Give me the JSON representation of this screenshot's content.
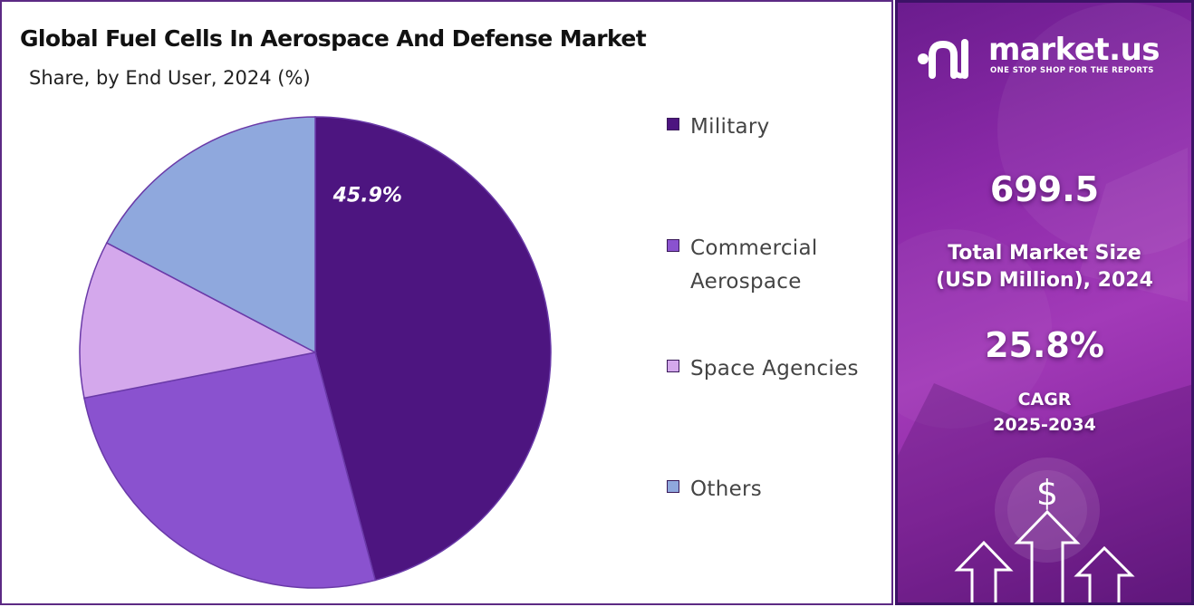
{
  "chart_data": {
    "type": "pie",
    "title": "Global Fuel Cells In Aerospace And Defense Market",
    "subtitle": "Share, by End User, 2024 (%)",
    "categories": [
      "Military",
      "Commercial Aerospace",
      "Space Agencies",
      "Others"
    ],
    "values": [
      45.9,
      26.0,
      10.8,
      17.3
    ],
    "colors": [
      "#4d1580",
      "#8a52cf",
      "#d4a8ec",
      "#8fa8dd"
    ],
    "data_labels": [
      "45.9%",
      "",
      "",
      ""
    ],
    "legend": [
      "Military",
      "Commercial Aerospace",
      "Space Agencies",
      "Others"
    ],
    "legend_position": "right"
  },
  "brand": {
    "name": "market.us",
    "tagline": "ONE STOP SHOP FOR THE REPORTS"
  },
  "stats": {
    "market_size_value": "699.5",
    "market_size_label_line1": "Total Market Size",
    "market_size_label_line2": "(USD Million), 2024",
    "cagr_value": "25.8%",
    "cagr_label_line1": "CAGR",
    "cagr_label_line2": "2025-2034"
  },
  "icons": {
    "currency": "$",
    "logo_icon": "market-us-logo-icon",
    "arrows": "growth-arrows-icon"
  },
  "colors": {
    "panel_border": "#5c2a84",
    "info_gradient_start": "#6b1c8e",
    "info_gradient_mid": "#a23ab8"
  }
}
